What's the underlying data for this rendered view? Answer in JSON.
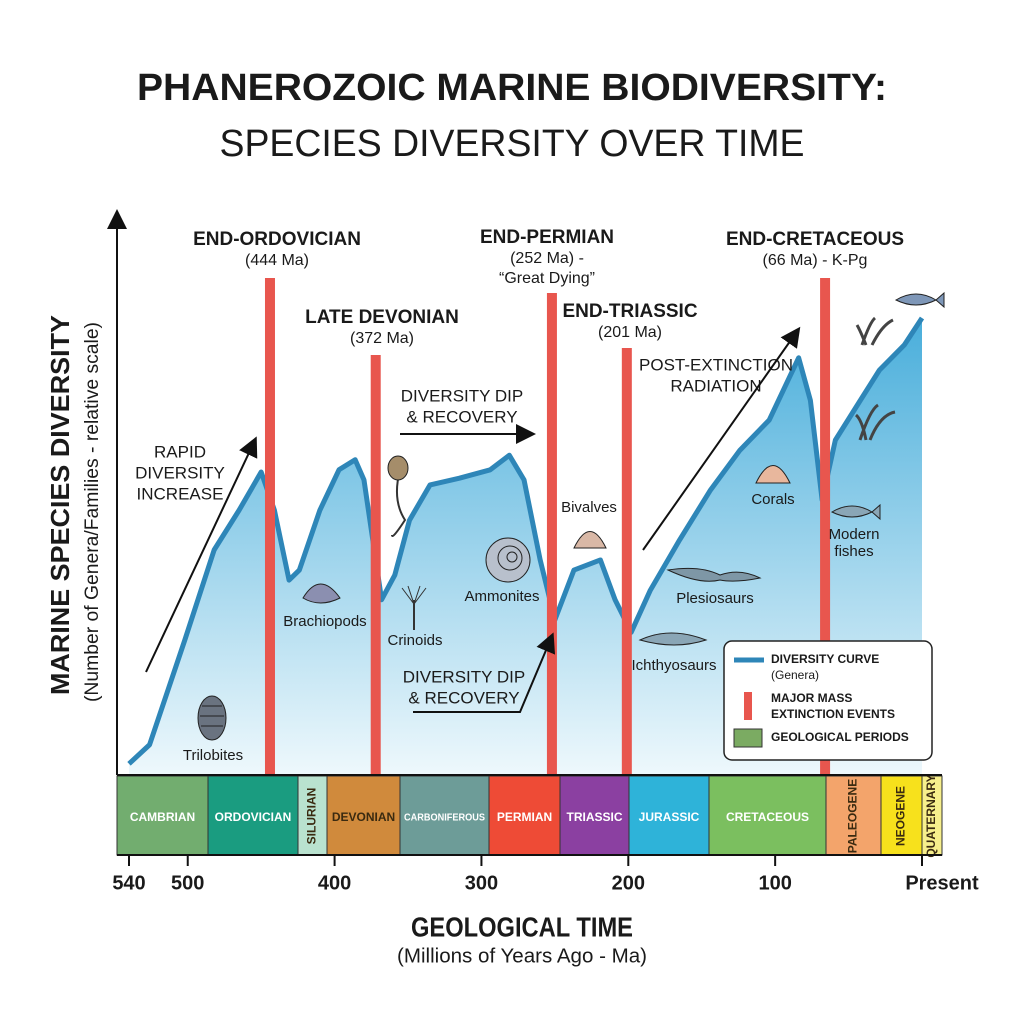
{
  "chart_data": {
    "type": "area",
    "title": "PHANEROZOIC MARINE BIODIVERSITY:",
    "subtitle": "SPECIES DIVERSITY OVER TIME",
    "y_label": "MARINE SPECIES DIVERSITY",
    "y_sublabel": "(Number of Genera/Families - relative scale)",
    "x_label": "GEOLOGICAL TIME",
    "x_sublabel": "(Millions of Years Ago - Ma)",
    "xlim": [
      540,
      0
    ],
    "ylim": [
      0,
      100
    ],
    "xticks": [
      540,
      500,
      400,
      300,
      200,
      100,
      {
        "value": 0,
        "label": "Present"
      }
    ],
    "series": [
      {
        "name": "DIVERSITY CURVE",
        "color": "#2e86b8",
        "x": [
          540,
          526,
          502,
          482,
          465,
          450,
          441,
          431,
          424,
          410,
          397,
          386,
          380,
          368,
          359,
          349,
          335,
          315,
          294,
          281,
          271,
          260,
          250,
          237,
          219,
          209,
          198,
          185,
          165,
          144,
          124,
          104,
          84,
          76,
          68,
          59,
          42,
          29,
          12,
          0
        ],
        "values": [
          2,
          5.4,
          24.1,
          40.2,
          47.3,
          54.1,
          47.3,
          34.8,
          36.6,
          47.3,
          54.5,
          56.3,
          52.7,
          31.3,
          35.7,
          45.5,
          51.8,
          53,
          54.5,
          57.1,
          52.7,
          38.4,
          27.7,
          36.6,
          38.4,
          31.3,
          25.5,
          33,
          42,
          50.9,
          58,
          63.4,
          74.5,
          66.9,
          49.1,
          59.8,
          66.9,
          72.3,
          76.8,
          81.6
        ]
      }
    ],
    "extinctions": [
      {
        "ma": 444,
        "name": "END-ORDOVICIAN",
        "detail": [
          "(444 Ma)"
        ]
      },
      {
        "ma": 372,
        "name": "LATE DEVONIAN",
        "detail": [
          "(372 Ma)"
        ]
      },
      {
        "ma": 252,
        "name": "END-PERMIAN",
        "detail": [
          "(252 Ma) -",
          "“Great Dying”"
        ]
      },
      {
        "ma": 201,
        "name": "END-TRIASSIC",
        "detail": [
          "(201 Ma)"
        ]
      },
      {
        "ma": 66,
        "name": "END-CRETACEOUS",
        "detail": [
          "(66 Ma) - K-Pg"
        ]
      }
    ],
    "extinction_color": "#e8564e",
    "periods": [
      {
        "name": "CAMBRIAN",
        "color": "#72ad6f"
      },
      {
        "name": "ORDOVICIAN",
        "color": "#1a9c80"
      },
      {
        "name": "SILURIAN",
        "color": "#b9e2cf"
      },
      {
        "name": "DEVONIAN",
        "color": "#d08a3c"
      },
      {
        "name": "CARBONIFEROUS",
        "color": "#6d9c98"
      },
      {
        "name": "PERMIAN",
        "color": "#ee4b36"
      },
      {
        "name": "TRIASSIC",
        "color": "#8b40a1"
      },
      {
        "name": "JURASSIC",
        "color": "#2eb3d9"
      },
      {
        "name": "CRETACEOUS",
        "color": "#7bbf5f"
      },
      {
        "name": "PALEOGENE",
        "color": "#f3a46b"
      },
      {
        "name": "NEOGENE",
        "color": "#f7e11c"
      },
      {
        "name": "QUATERNARY",
        "color": "#f7ef8c"
      }
    ],
    "fossils": [
      [
        "Trilobites"
      ],
      [
        "Brachiopods"
      ],
      [
        "Crinoids"
      ],
      [
        "Ammonites"
      ],
      [
        "Bivalves"
      ],
      [
        "Ichthyosaurs"
      ],
      [
        "Plesiosaurs"
      ],
      [
        "Corals"
      ],
      [
        "Modern",
        "fishes"
      ]
    ],
    "annotations": [
      [
        "RAPID",
        "DIVERSITY",
        "INCREASE"
      ],
      [
        "DIVERSITY DIP",
        "& RECOVERY"
      ],
      [
        "DIVERSITY DIP",
        "& RECOVERY"
      ],
      [
        "POST-EXTINCTION",
        "RADIATION"
      ]
    ],
    "legend": {
      "curve": [
        "DIVERSITY CURVE",
        "(Genera)"
      ],
      "extinction": [
        "MAJOR MASS",
        "EXTINCTION EVENTS"
      ],
      "periods": [
        "GEOLOGICAL PERIODS"
      ]
    }
  }
}
